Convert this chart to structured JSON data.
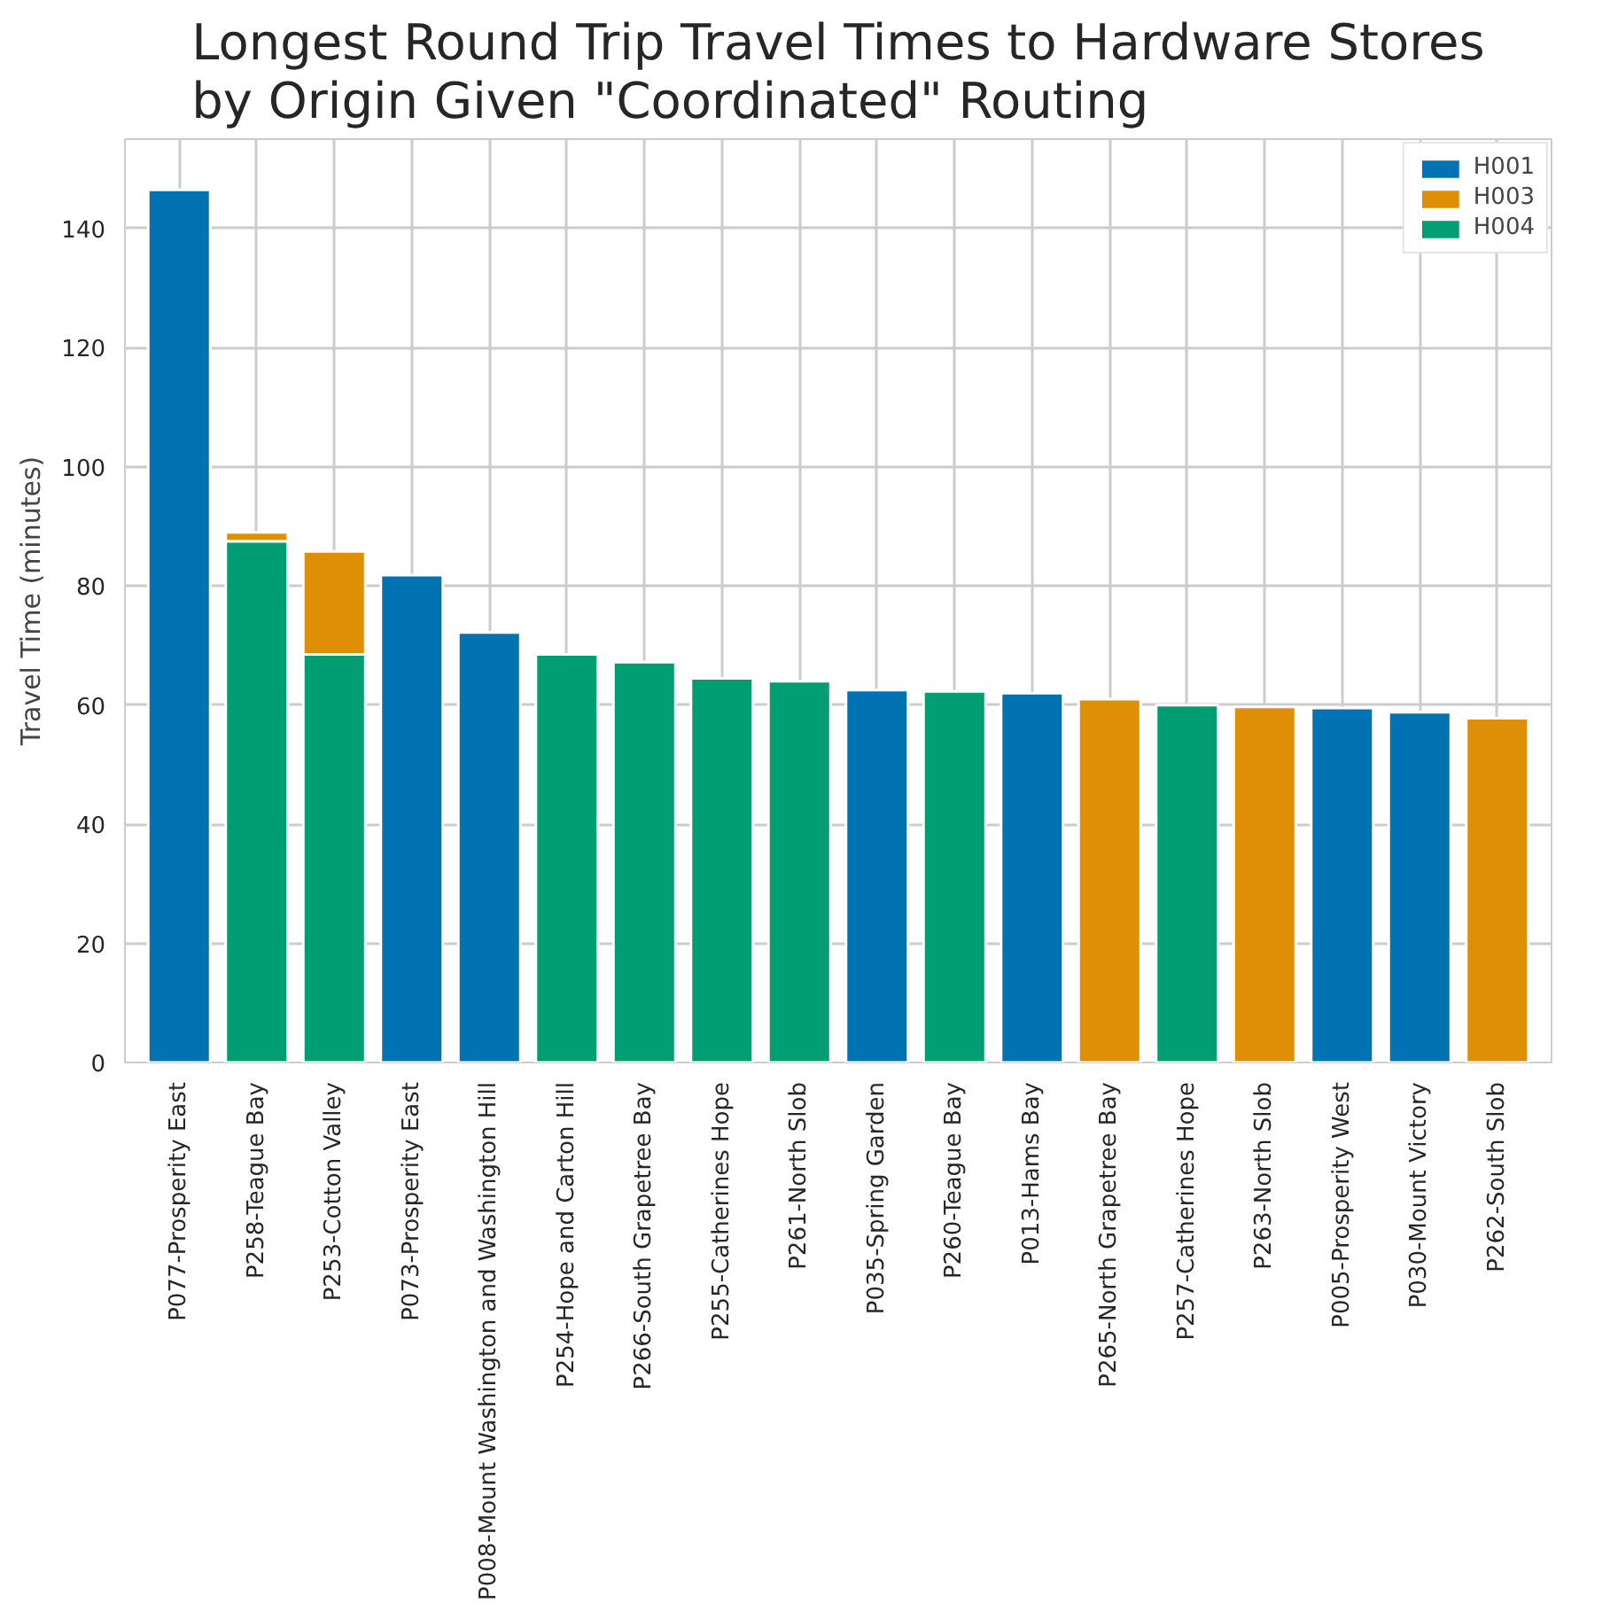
{
  "chart_data": {
    "type": "bar",
    "title": "Longest Round Trip Travel Times to Hardware Stores\nby Origin Given \"Coordinated\" Routing",
    "ylabel": "Travel Time (minutes)",
    "categories": [
      "P077-Prosperity East",
      "P258-Teague Bay",
      "P253-Cotton Valley",
      "P073-Prosperity East",
      "P008-Mount Washington and Washington Hill",
      "P254-Hope and Carton Hill",
      "P266-South Grapetree Bay",
      "P255-Catherines Hope",
      "P261-North Slob",
      "P035-Spring Garden",
      "P260-Teague Bay",
      "P013-Hams Bay",
      "P265-North Grapetree Bay",
      "P257-Catherines Hope",
      "P263-North Slob",
      "P005-Prosperity West",
      "P030-Mount Victory",
      "P262-South Slob"
    ],
    "series": [
      {
        "name": "H001",
        "color": "#0173b2",
        "values": [
          146.5,
          null,
          null,
          81.8,
          72.2,
          null,
          null,
          null,
          null,
          62.5,
          null,
          62,
          null,
          null,
          null,
          59.5,
          58.8,
          null
        ]
      },
      {
        "name": "H004",
        "color": "#029e73",
        "values": [
          null,
          87.5,
          68.5,
          null,
          null,
          68.5,
          67.2,
          64.5,
          64,
          null,
          62.3,
          null,
          null,
          60,
          null,
          null,
          null,
          null
        ]
      },
      {
        "name": "H003",
        "color": "#de8f05",
        "values": [
          null,
          1.5,
          17.3,
          null,
          null,
          null,
          null,
          null,
          null,
          null,
          null,
          null,
          61,
          null,
          59.7,
          null,
          null,
          57.8
        ]
      }
    ],
    "stacked": true,
    "ylim": [
      0,
      155
    ],
    "yticks": [
      0,
      20,
      40,
      60,
      80,
      100,
      120,
      140
    ],
    "grid": true,
    "legend": "top right"
  }
}
